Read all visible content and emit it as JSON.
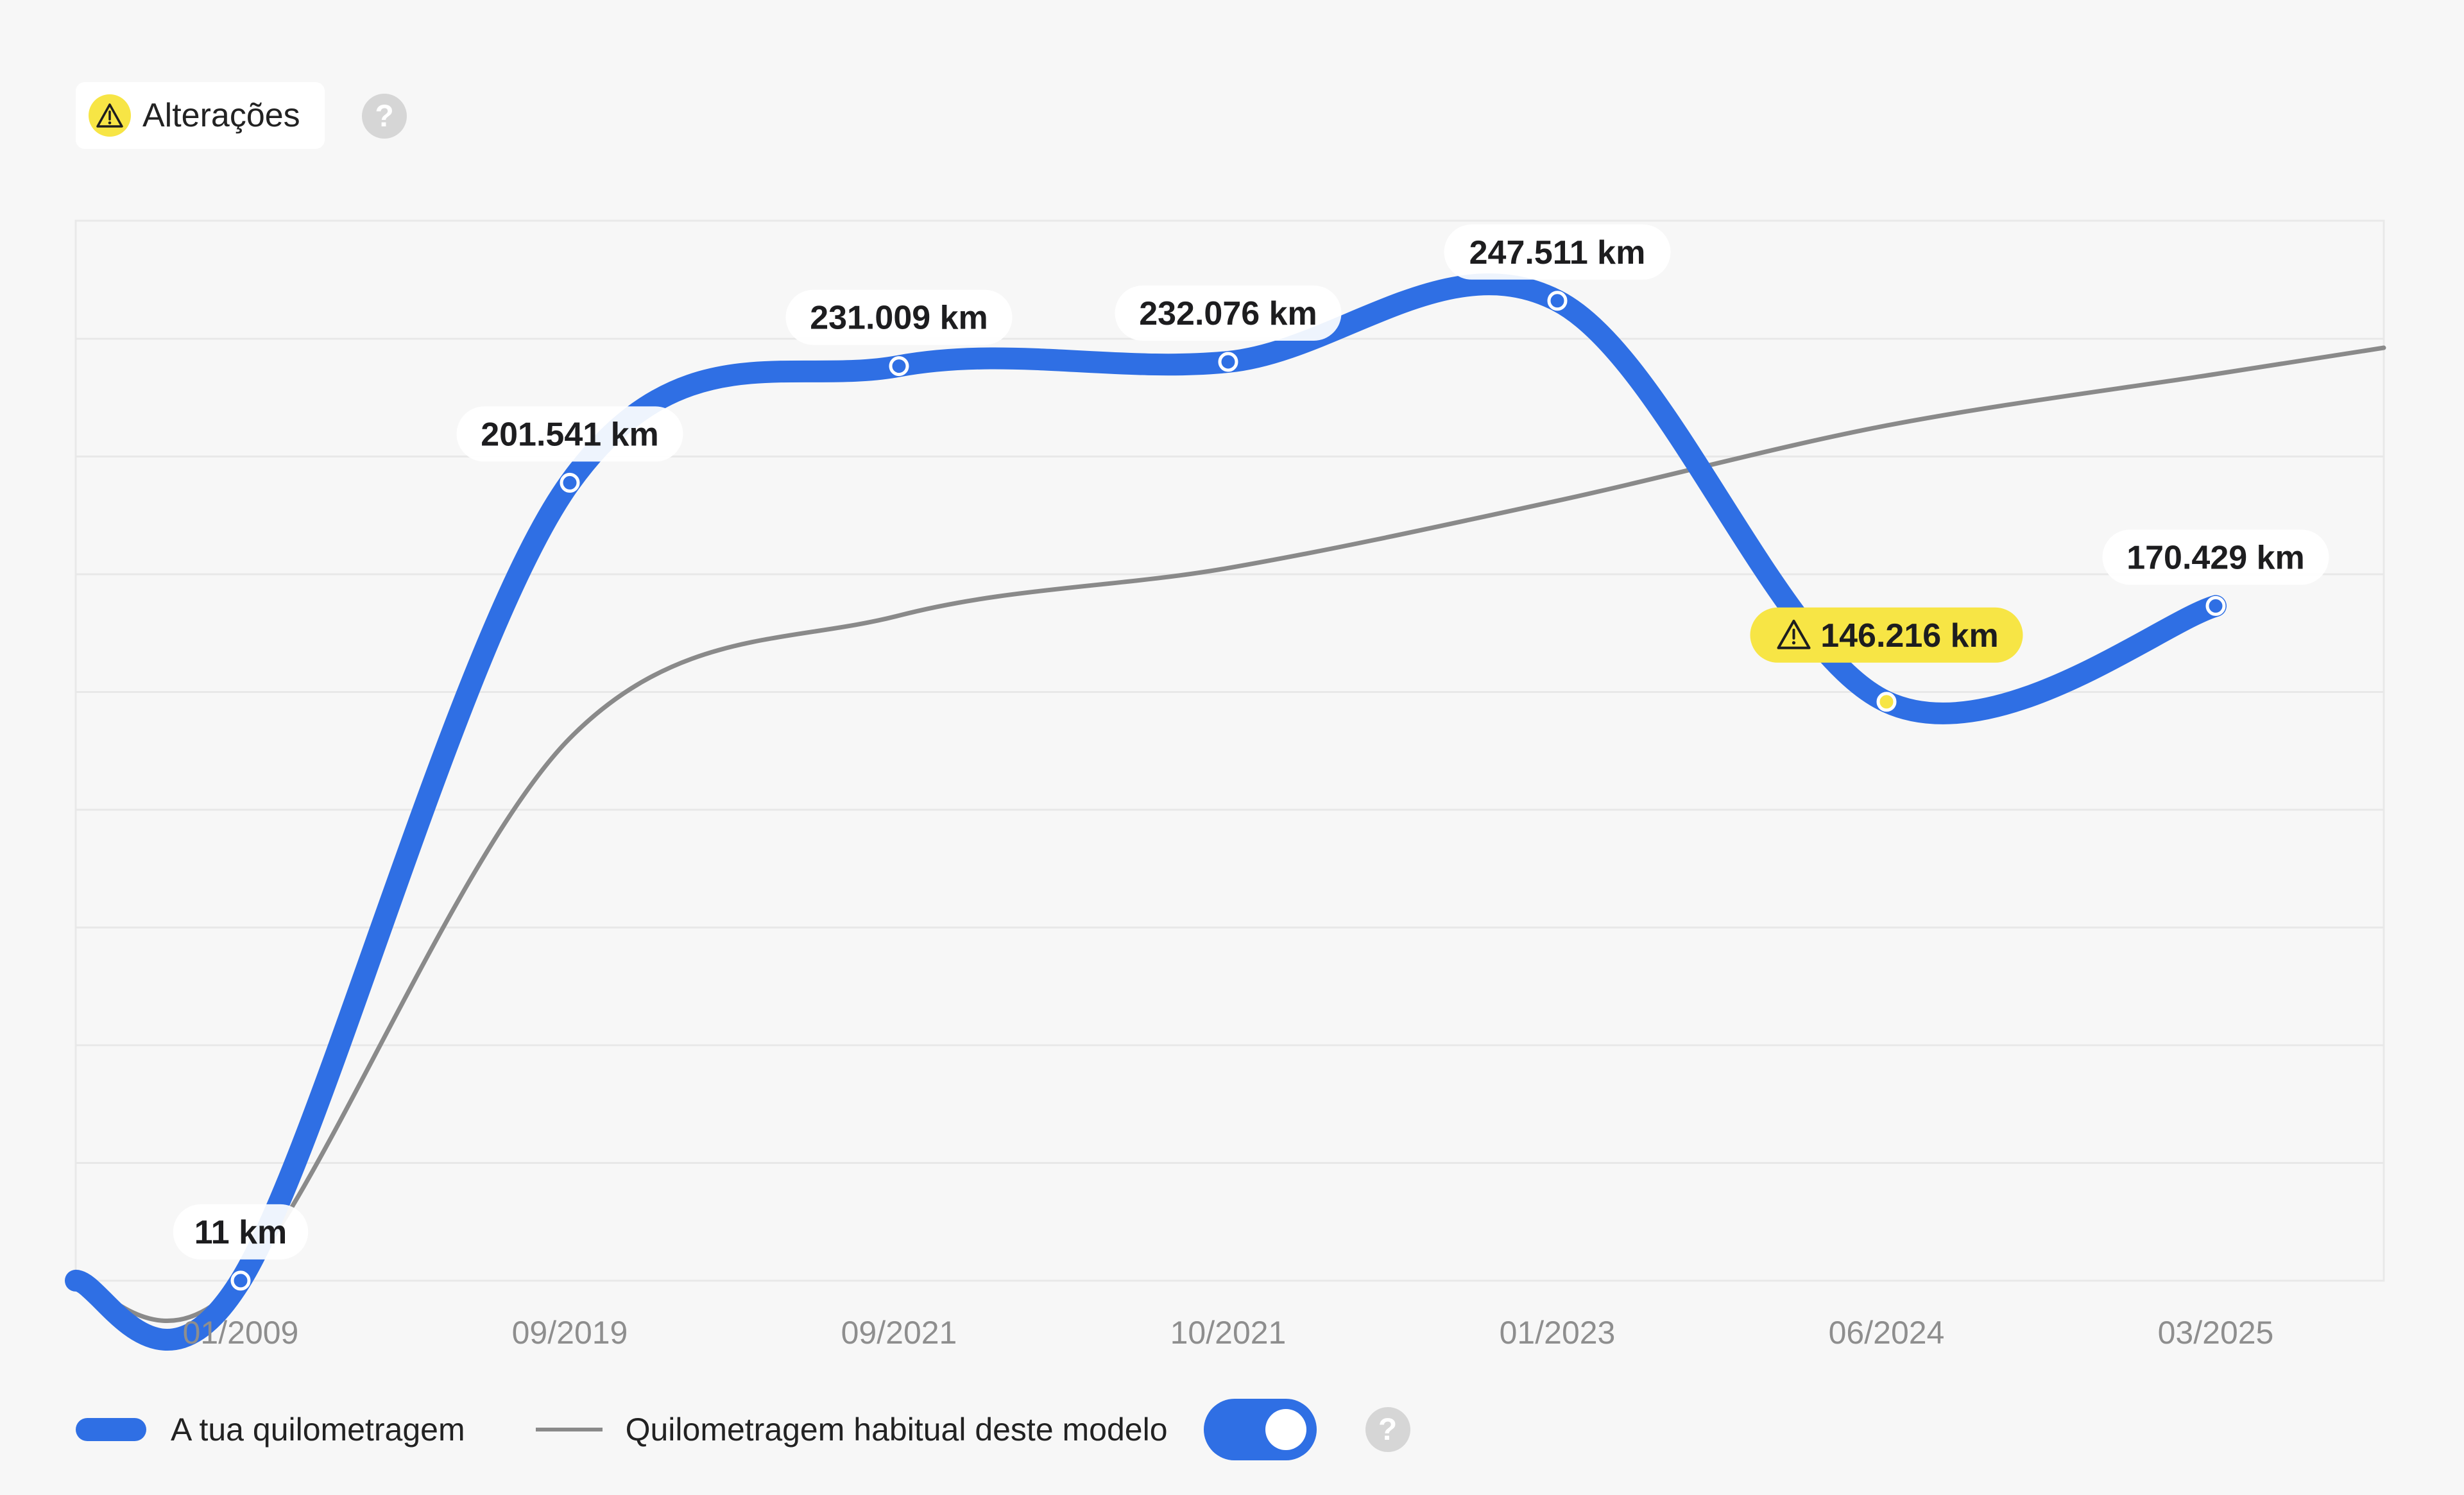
{
  "header": {
    "alerts_label": "Alterações",
    "alerts_icon": "warning-triangle-icon",
    "help_icon": "question-mark-icon",
    "help_glyph": "?"
  },
  "chart_data": {
    "type": "line",
    "x": [
      "01/2009",
      "09/2019",
      "09/2021",
      "10/2021",
      "01/2023",
      "06/2024",
      "03/2025"
    ],
    "ylim": [
      0,
      270000
    ],
    "grid": true,
    "legend_placement": "bottom-left",
    "series": [
      {
        "name": "A tua quilometragem",
        "color": "#2f6fe4",
        "values": [
          11,
          201541,
          231009,
          232076,
          247511,
          146216,
          170429
        ],
        "labels": [
          "11 km",
          "201.541 km",
          "231.009 km",
          "232.076 km",
          "247.511 km",
          "146.216 km",
          "170.429 km"
        ],
        "flagged_index": 5,
        "flag_color": "#f7e545"
      },
      {
        "name": "Quilometragem habitual deste modelo",
        "color": "#8a8a8a",
        "values": [
          11,
          137000,
          168000,
          180000,
          197000,
          216000,
          229000
        ]
      }
    ]
  },
  "legend": {
    "toggle_on": true
  }
}
